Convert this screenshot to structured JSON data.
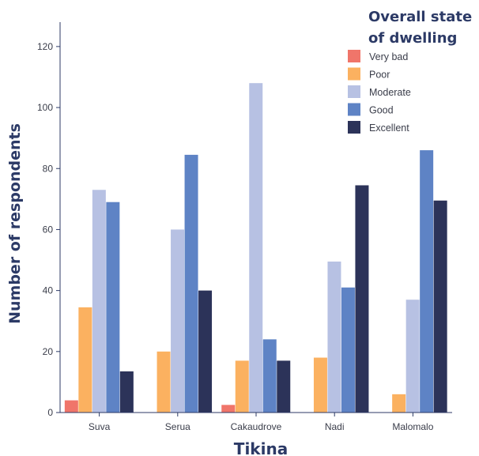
{
  "chart_data": {
    "type": "bar",
    "categories": [
      "Suva",
      "Serua",
      "Cakaudrove",
      "Nadi",
      "Malomalo"
    ],
    "series": [
      {
        "name": "Very bad",
        "color": "#f0756a",
        "values": [
          4,
          0,
          2.5,
          0,
          0
        ]
      },
      {
        "name": "Poor",
        "color": "#fbb160",
        "values": [
          34.5,
          20,
          17,
          18,
          6
        ]
      },
      {
        "name": "Moderate",
        "color": "#b7c1e3",
        "values": [
          73,
          60,
          108,
          49.5,
          37
        ]
      },
      {
        "name": "Good",
        "color": "#5e83c5",
        "values": [
          69,
          84.5,
          24,
          41,
          86
        ]
      },
      {
        "name": "Excellent",
        "color": "#2c3359",
        "values": [
          13.5,
          40,
          17,
          74.5,
          69.5
        ]
      }
    ],
    "title": "",
    "xlabel": "Tikina",
    "ylabel": "Number of respondents",
    "ylim": [
      0,
      128
    ],
    "yticks": [
      0,
      20,
      40,
      60,
      80,
      100,
      120
    ],
    "grid": false,
    "legend": {
      "title_lines": [
        "Overall state",
        "of dwelling"
      ],
      "placement": "top-right"
    },
    "colors": {
      "axis": "#2c3a66",
      "text": "#3a3d4a"
    }
  }
}
